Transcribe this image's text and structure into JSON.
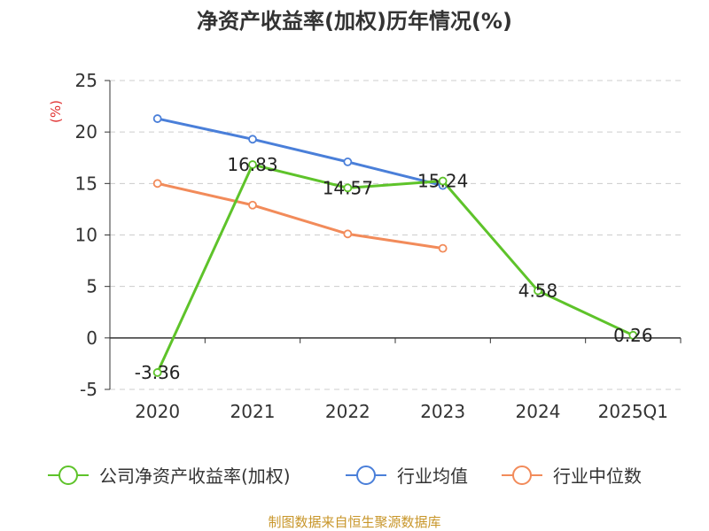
{
  "chart_data": {
    "type": "line",
    "title": "净资产收益率(加权)历年情况(%)",
    "ylabel": "(%)",
    "xlabel": "",
    "categories": [
      "2020",
      "2021",
      "2022",
      "2023",
      "2024",
      "2025Q1"
    ],
    "ylim": [
      -5,
      25
    ],
    "yticks": [
      -5,
      0,
      5,
      10,
      15,
      20,
      25
    ],
    "grid": true,
    "legend_position": "bottom",
    "series": [
      {
        "name": "公司净资产收益率(加权)",
        "color": "#5ec32a",
        "values": [
          -3.36,
          16.83,
          14.57,
          15.24,
          4.58,
          0.26
        ],
        "labels": [
          "-3.36",
          "16.83",
          "14.57",
          "15.24",
          "4.58",
          "0.26"
        ]
      },
      {
        "name": "行业均值",
        "color": "#4a7fd9",
        "values": [
          21.3,
          19.3,
          17.1,
          14.8,
          null,
          null
        ]
      },
      {
        "name": "行业中位数",
        "color": "#f28b5a",
        "values": [
          15.0,
          12.9,
          10.1,
          8.7,
          null,
          null
        ]
      }
    ],
    "source": "制图数据来自恒生聚源数据库"
  }
}
